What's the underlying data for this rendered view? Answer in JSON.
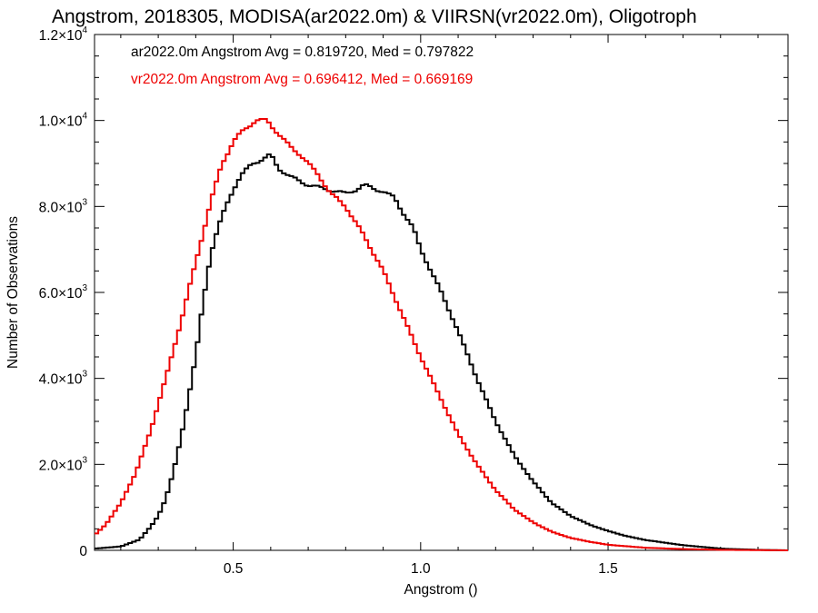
{
  "chart_data": {
    "type": "line",
    "title": "Angstrom, 2018305, MODISA(ar2022.0m) & VIIRSN(vr2022.0m), Oligotroph",
    "xlabel": "Angstrom ()",
    "ylabel": "Number of Observations",
    "xlim": [
      0.13,
      1.98
    ],
    "ylim": [
      0,
      12000
    ],
    "x_ticks": [
      {
        "value": 0.5,
        "label": "0.5"
      },
      {
        "value": 1.0,
        "label": "1.0"
      },
      {
        "value": 1.5,
        "label": "1.5"
      }
    ],
    "y_ticks": [
      {
        "value": 0,
        "mantissa": "0",
        "exponent": ""
      },
      {
        "value": 2000,
        "mantissa": "2.0×10",
        "exponent": "3"
      },
      {
        "value": 4000,
        "mantissa": "4.0×10",
        "exponent": "3"
      },
      {
        "value": 6000,
        "mantissa": "6.0×10",
        "exponent": "3"
      },
      {
        "value": 8000,
        "mantissa": "8.0×10",
        "exponent": "3"
      },
      {
        "value": 10000,
        "mantissa": "1.0×10",
        "exponent": "4"
      },
      {
        "value": 12000,
        "mantissa": "1.2×10",
        "exponent": "4"
      }
    ],
    "step": true,
    "grid": false,
    "legend": [
      {
        "text": "ar2022.0m Angstrom Avg = 0.819720, Med = 0.797822",
        "color": "#000000"
      },
      {
        "text": "vr2022.0m Angstrom Avg = 0.696412, Med = 0.669169",
        "color": "#ee0000"
      }
    ],
    "series": [
      {
        "color": "#000000",
        "points": [
          [
            0.13,
            40
          ],
          [
            0.2,
            90
          ],
          [
            0.25,
            250
          ],
          [
            0.28,
            550
          ],
          [
            0.3,
            800
          ],
          [
            0.32,
            1200
          ],
          [
            0.34,
            1800
          ],
          [
            0.36,
            2600
          ],
          [
            0.38,
            3500
          ],
          [
            0.4,
            4500
          ],
          [
            0.42,
            5800
          ],
          [
            0.44,
            6900
          ],
          [
            0.46,
            7500
          ],
          [
            0.48,
            8000
          ],
          [
            0.5,
            8400
          ],
          [
            0.52,
            8700
          ],
          [
            0.55,
            9000
          ],
          [
            0.58,
            9100
          ],
          [
            0.6,
            9200
          ],
          [
            0.62,
            8900
          ],
          [
            0.65,
            8700
          ],
          [
            0.7,
            8500
          ],
          [
            0.75,
            8400
          ],
          [
            0.8,
            8300
          ],
          [
            0.83,
            8400
          ],
          [
            0.85,
            8500
          ],
          [
            0.88,
            8400
          ],
          [
            0.9,
            8350
          ],
          [
            0.93,
            8200
          ],
          [
            0.95,
            7900
          ],
          [
            0.98,
            7500
          ],
          [
            1.0,
            7000
          ],
          [
            1.05,
            6100
          ],
          [
            1.1,
            5100
          ],
          [
            1.15,
            4000
          ],
          [
            1.2,
            3000
          ],
          [
            1.25,
            2200
          ],
          [
            1.3,
            1600
          ],
          [
            1.35,
            1100
          ],
          [
            1.4,
            800
          ],
          [
            1.45,
            600
          ],
          [
            1.5,
            450
          ],
          [
            1.55,
            330
          ],
          [
            1.6,
            240
          ],
          [
            1.7,
            120
          ],
          [
            1.8,
            40
          ],
          [
            1.9,
            10
          ],
          [
            1.98,
            0
          ]
        ]
      },
      {
        "color": "#ee0000",
        "points": [
          [
            0.13,
            350
          ],
          [
            0.16,
            600
          ],
          [
            0.2,
            1100
          ],
          [
            0.24,
            1800
          ],
          [
            0.28,
            2800
          ],
          [
            0.32,
            4000
          ],
          [
            0.36,
            5300
          ],
          [
            0.4,
            6700
          ],
          [
            0.44,
            8100
          ],
          [
            0.47,
            9000
          ],
          [
            0.5,
            9500
          ],
          [
            0.53,
            9800
          ],
          [
            0.56,
            10000
          ],
          [
            0.59,
            10000
          ],
          [
            0.62,
            9700
          ],
          [
            0.65,
            9400
          ],
          [
            0.68,
            9200
          ],
          [
            0.7,
            9000
          ],
          [
            0.73,
            8700
          ],
          [
            0.76,
            8300
          ],
          [
            0.8,
            8000
          ],
          [
            0.85,
            7300
          ],
          [
            0.9,
            6500
          ],
          [
            0.95,
            5500
          ],
          [
            1.0,
            4500
          ],
          [
            1.05,
            3600
          ],
          [
            1.1,
            2700
          ],
          [
            1.15,
            2000
          ],
          [
            1.2,
            1400
          ],
          [
            1.25,
            950
          ],
          [
            1.3,
            650
          ],
          [
            1.35,
            430
          ],
          [
            1.4,
            290
          ],
          [
            1.45,
            200
          ],
          [
            1.5,
            130
          ],
          [
            1.6,
            60
          ],
          [
            1.7,
            30
          ],
          [
            1.8,
            12
          ],
          [
            1.98,
            0
          ]
        ]
      }
    ]
  }
}
